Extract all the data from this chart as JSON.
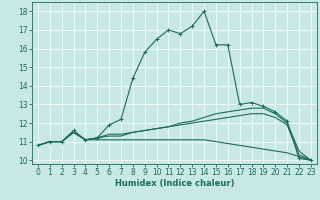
{
  "xlabel": "Humidex (Indice chaleur)",
  "background_color": "#c8e8e8",
  "line_color": "#1a6b5a",
  "xlim": [
    -0.5,
    23.5
  ],
  "ylim": [
    9.8,
    18.5
  ],
  "yticks": [
    10,
    11,
    12,
    13,
    14,
    15,
    16,
    17,
    18
  ],
  "xticks": [
    0,
    1,
    2,
    3,
    4,
    5,
    6,
    7,
    8,
    9,
    10,
    11,
    12,
    13,
    14,
    15,
    16,
    17,
    18,
    19,
    20,
    21,
    22,
    23
  ],
  "line1_x": [
    0,
    1,
    2,
    3,
    4,
    5,
    6,
    7,
    8,
    9,
    10,
    11,
    12,
    13,
    14,
    15,
    16,
    17,
    18,
    19,
    20,
    21,
    22,
    23
  ],
  "line1_y": [
    10.8,
    11.0,
    11.0,
    11.6,
    11.1,
    11.2,
    11.9,
    12.2,
    14.4,
    15.8,
    16.5,
    17.0,
    16.8,
    17.2,
    18.0,
    16.2,
    16.2,
    13.0,
    13.1,
    12.9,
    12.6,
    12.1,
    10.1,
    10.0
  ],
  "line2_x": [
    0,
    1,
    2,
    3,
    4,
    5,
    6,
    7,
    8,
    9,
    10,
    11,
    12,
    13,
    14,
    15,
    16,
    17,
    18,
    19,
    20,
    21,
    22,
    23
  ],
  "line2_y": [
    10.8,
    11.0,
    11.0,
    11.5,
    11.1,
    11.2,
    11.4,
    11.4,
    11.5,
    11.6,
    11.7,
    11.8,
    12.0,
    12.1,
    12.3,
    12.5,
    12.6,
    12.7,
    12.8,
    12.8,
    12.5,
    12.0,
    10.5,
    10.0
  ],
  "line3_x": [
    0,
    1,
    2,
    3,
    4,
    5,
    6,
    7,
    8,
    9,
    10,
    11,
    12,
    13,
    14,
    15,
    16,
    17,
    18,
    19,
    20,
    21,
    22,
    23
  ],
  "line3_y": [
    10.8,
    11.0,
    11.0,
    11.5,
    11.1,
    11.2,
    11.3,
    11.3,
    11.5,
    11.6,
    11.7,
    11.8,
    11.9,
    12.0,
    12.1,
    12.2,
    12.3,
    12.4,
    12.5,
    12.5,
    12.3,
    11.9,
    10.3,
    10.0
  ],
  "line4_x": [
    0,
    1,
    2,
    3,
    4,
    5,
    6,
    7,
    8,
    9,
    10,
    11,
    12,
    13,
    14,
    15,
    16,
    17,
    18,
    19,
    20,
    21,
    22,
    23
  ],
  "line4_y": [
    10.8,
    11.0,
    11.0,
    11.5,
    11.1,
    11.1,
    11.1,
    11.1,
    11.1,
    11.1,
    11.1,
    11.1,
    11.1,
    11.1,
    11.1,
    11.0,
    10.9,
    10.8,
    10.7,
    10.6,
    10.5,
    10.4,
    10.2,
    10.0
  ],
  "tick_fontsize": 5.5,
  "xlabel_fontsize": 6.0
}
